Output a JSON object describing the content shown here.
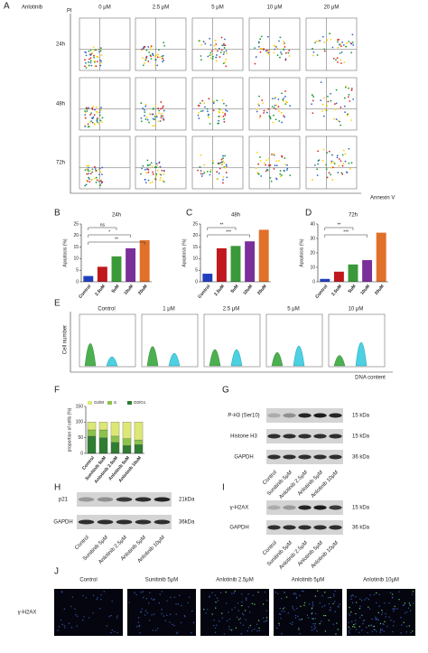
{
  "letters": [
    "A",
    "B",
    "C",
    "D",
    "E",
    "F",
    "G",
    "H",
    "I",
    "J"
  ],
  "panel_a": {
    "drug": "Anlotinib",
    "doses": [
      "0 μM",
      "2.5 μM",
      "5 μM",
      "10 μM",
      "20 μM"
    ],
    "times": [
      "24h",
      "48h",
      "72h"
    ],
    "y_label": "PI",
    "x_label": "Annexin V"
  },
  "chart_data": [
    {
      "type": "bar",
      "title": "24h",
      "y_label": "Apoptosis (%)",
      "categories": [
        "Control",
        "2.5uM",
        "5uM",
        "10uM",
        "20uM"
      ],
      "values": [
        2.5,
        6.5,
        11,
        14.5,
        18
      ],
      "colors": [
        "#1f3fbf",
        "#c0181c",
        "#3a9a3a",
        "#7b2f9b",
        "#e0702a"
      ],
      "ylim": [
        0,
        25
      ],
      "yticks": [
        0,
        5,
        10,
        15,
        20,
        25
      ],
      "annotations": [
        "ns",
        "*",
        "**"
      ]
    },
    {
      "type": "bar",
      "title": "48h",
      "y_label": "Apoptosis (%)",
      "categories": [
        "Control",
        "2.5uM",
        "5uM",
        "10uM",
        "20uM"
      ],
      "values": [
        3.5,
        14.5,
        15.5,
        17.5,
        22.5
      ],
      "colors": [
        "#1f3fbf",
        "#c0181c",
        "#3a9a3a",
        "#7b2f9b",
        "#e0702a"
      ],
      "ylim": [
        0,
        25
      ],
      "yticks": [
        0,
        5,
        10,
        15,
        20,
        25
      ],
      "annotations": [
        "**",
        "***"
      ]
    },
    {
      "type": "bar",
      "title": "72h",
      "y_label": "Apoptosis (%)",
      "categories": [
        "Control",
        "2.5uM",
        "5uM",
        "10uM",
        "20uM"
      ],
      "values": [
        2,
        7,
        12,
        15,
        34
      ],
      "colors": [
        "#1f3fbf",
        "#c0181c",
        "#3a9a3a",
        "#7b2f9b",
        "#e0702a"
      ],
      "ylim": [
        0,
        40
      ],
      "yticks": [
        0,
        10,
        20,
        30,
        40
      ],
      "annotations": [
        "**",
        "***"
      ]
    },
    {
      "type": "stacked_bar",
      "y_label": "proportion of cells (%)",
      "categories": [
        "Control",
        "Sunitinib 5uM",
        "Anlotinib 2.5uM",
        "Anlotinib 5uM",
        "Anlotinib 10uM"
      ],
      "series": [
        {
          "name": "G0/G1",
          "color": "#2e7d32",
          "values": [
            55,
            50,
            35,
            25,
            28
          ]
        },
        {
          "name": "S",
          "color": "#8bc34a",
          "values": [
            20,
            25,
            20,
            22,
            15
          ]
        },
        {
          "name": "G2/M",
          "color": "#dce775",
          "values": [
            25,
            25,
            45,
            53,
            57
          ]
        }
      ],
      "ylim": [
        0,
        150
      ],
      "yticks": [
        0,
        50,
        100,
        150
      ]
    }
  ],
  "panel_e": {
    "groups": [
      "Control",
      "1 μM",
      "2.5 μM",
      "5 μM",
      "10 μM"
    ],
    "y_label": "Cell number",
    "x_label": "DNA content"
  },
  "panel_g": {
    "rows": [
      "P-H3 (Ser10)",
      "Histone H3",
      "GAPDH"
    ],
    "sizes": [
      "15 kDa",
      "15 kDa",
      "36 kDa"
    ],
    "lanes": [
      "Control",
      "Sunitinib 5μM",
      "Anlotinib 2.5μM",
      "Anlotinib 5μM",
      "Anlotinib 10μM"
    ]
  },
  "panel_h": {
    "rows": [
      "p21",
      "GAPDH"
    ],
    "sizes": [
      "21kDa",
      "36kDa"
    ],
    "lanes": [
      "Control",
      "Sunitinib 5μM",
      "Anlotinib 2.5μM",
      "Anlotinib 5μM",
      "Anlotinib 10μM"
    ]
  },
  "panel_i": {
    "rows": [
      "γ-H2AX",
      "GAPDH"
    ],
    "sizes": [
      "15 kDa",
      "36 kDa"
    ],
    "lanes": [
      "Control",
      "Sunitinib 5μM",
      "Anlotinib 2.5μM",
      "Anlotinib 5μM",
      "Anlotinib 10μM"
    ]
  },
  "panel_j": {
    "groups": [
      "Control",
      "Sunitinib 5μM",
      "Anlotinib 2.5μM",
      "Anlotinib 5μM",
      "Anlotinib 10μM"
    ],
    "row_label": "γ-H2AX"
  }
}
